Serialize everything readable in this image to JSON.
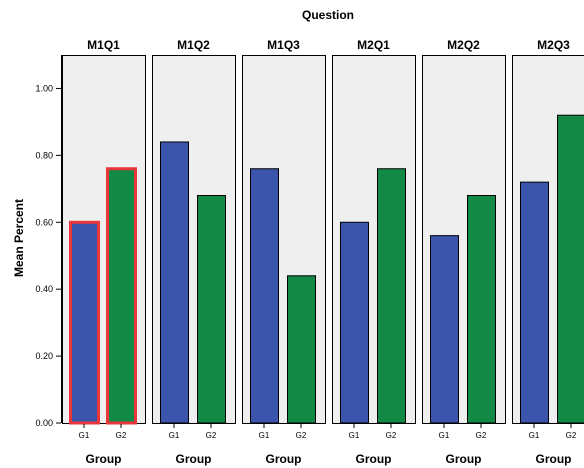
{
  "chart_data": {
    "type": "bar",
    "title": "Question",
    "ylabel": "Mean Percent",
    "xlabel": "Group",
    "ylim": [
      0,
      1.1
    ],
    "yticks": [
      "0.00",
      "0.20",
      "0.40",
      "0.60",
      "0.80",
      "1.00"
    ],
    "ytick_values": [
      0,
      0.2,
      0.4,
      0.6,
      0.8,
      1.0
    ],
    "categories": [
      "G1",
      "G2"
    ],
    "panels": [
      {
        "label": "M1Q1",
        "values": [
          0.6,
          0.76
        ],
        "highlighted": true
      },
      {
        "label": "M1Q2",
        "values": [
          0.84,
          0.68
        ],
        "highlighted": false
      },
      {
        "label": "M1Q3",
        "values": [
          0.76,
          0.44
        ],
        "highlighted": false
      },
      {
        "label": "M2Q1",
        "values": [
          0.6,
          0.76
        ],
        "highlighted": false
      },
      {
        "label": "M2Q2",
        "values": [
          0.56,
          0.68
        ],
        "highlighted": false
      },
      {
        "label": "M2Q3",
        "values": [
          0.72,
          0.92
        ],
        "highlighted": false
      }
    ],
    "colors": {
      "G1": "#3b55ad",
      "G2": "#128a45",
      "panel_bg": "#efefef",
      "highlight": "#e8363a"
    },
    "grid": false,
    "legend": "none"
  }
}
